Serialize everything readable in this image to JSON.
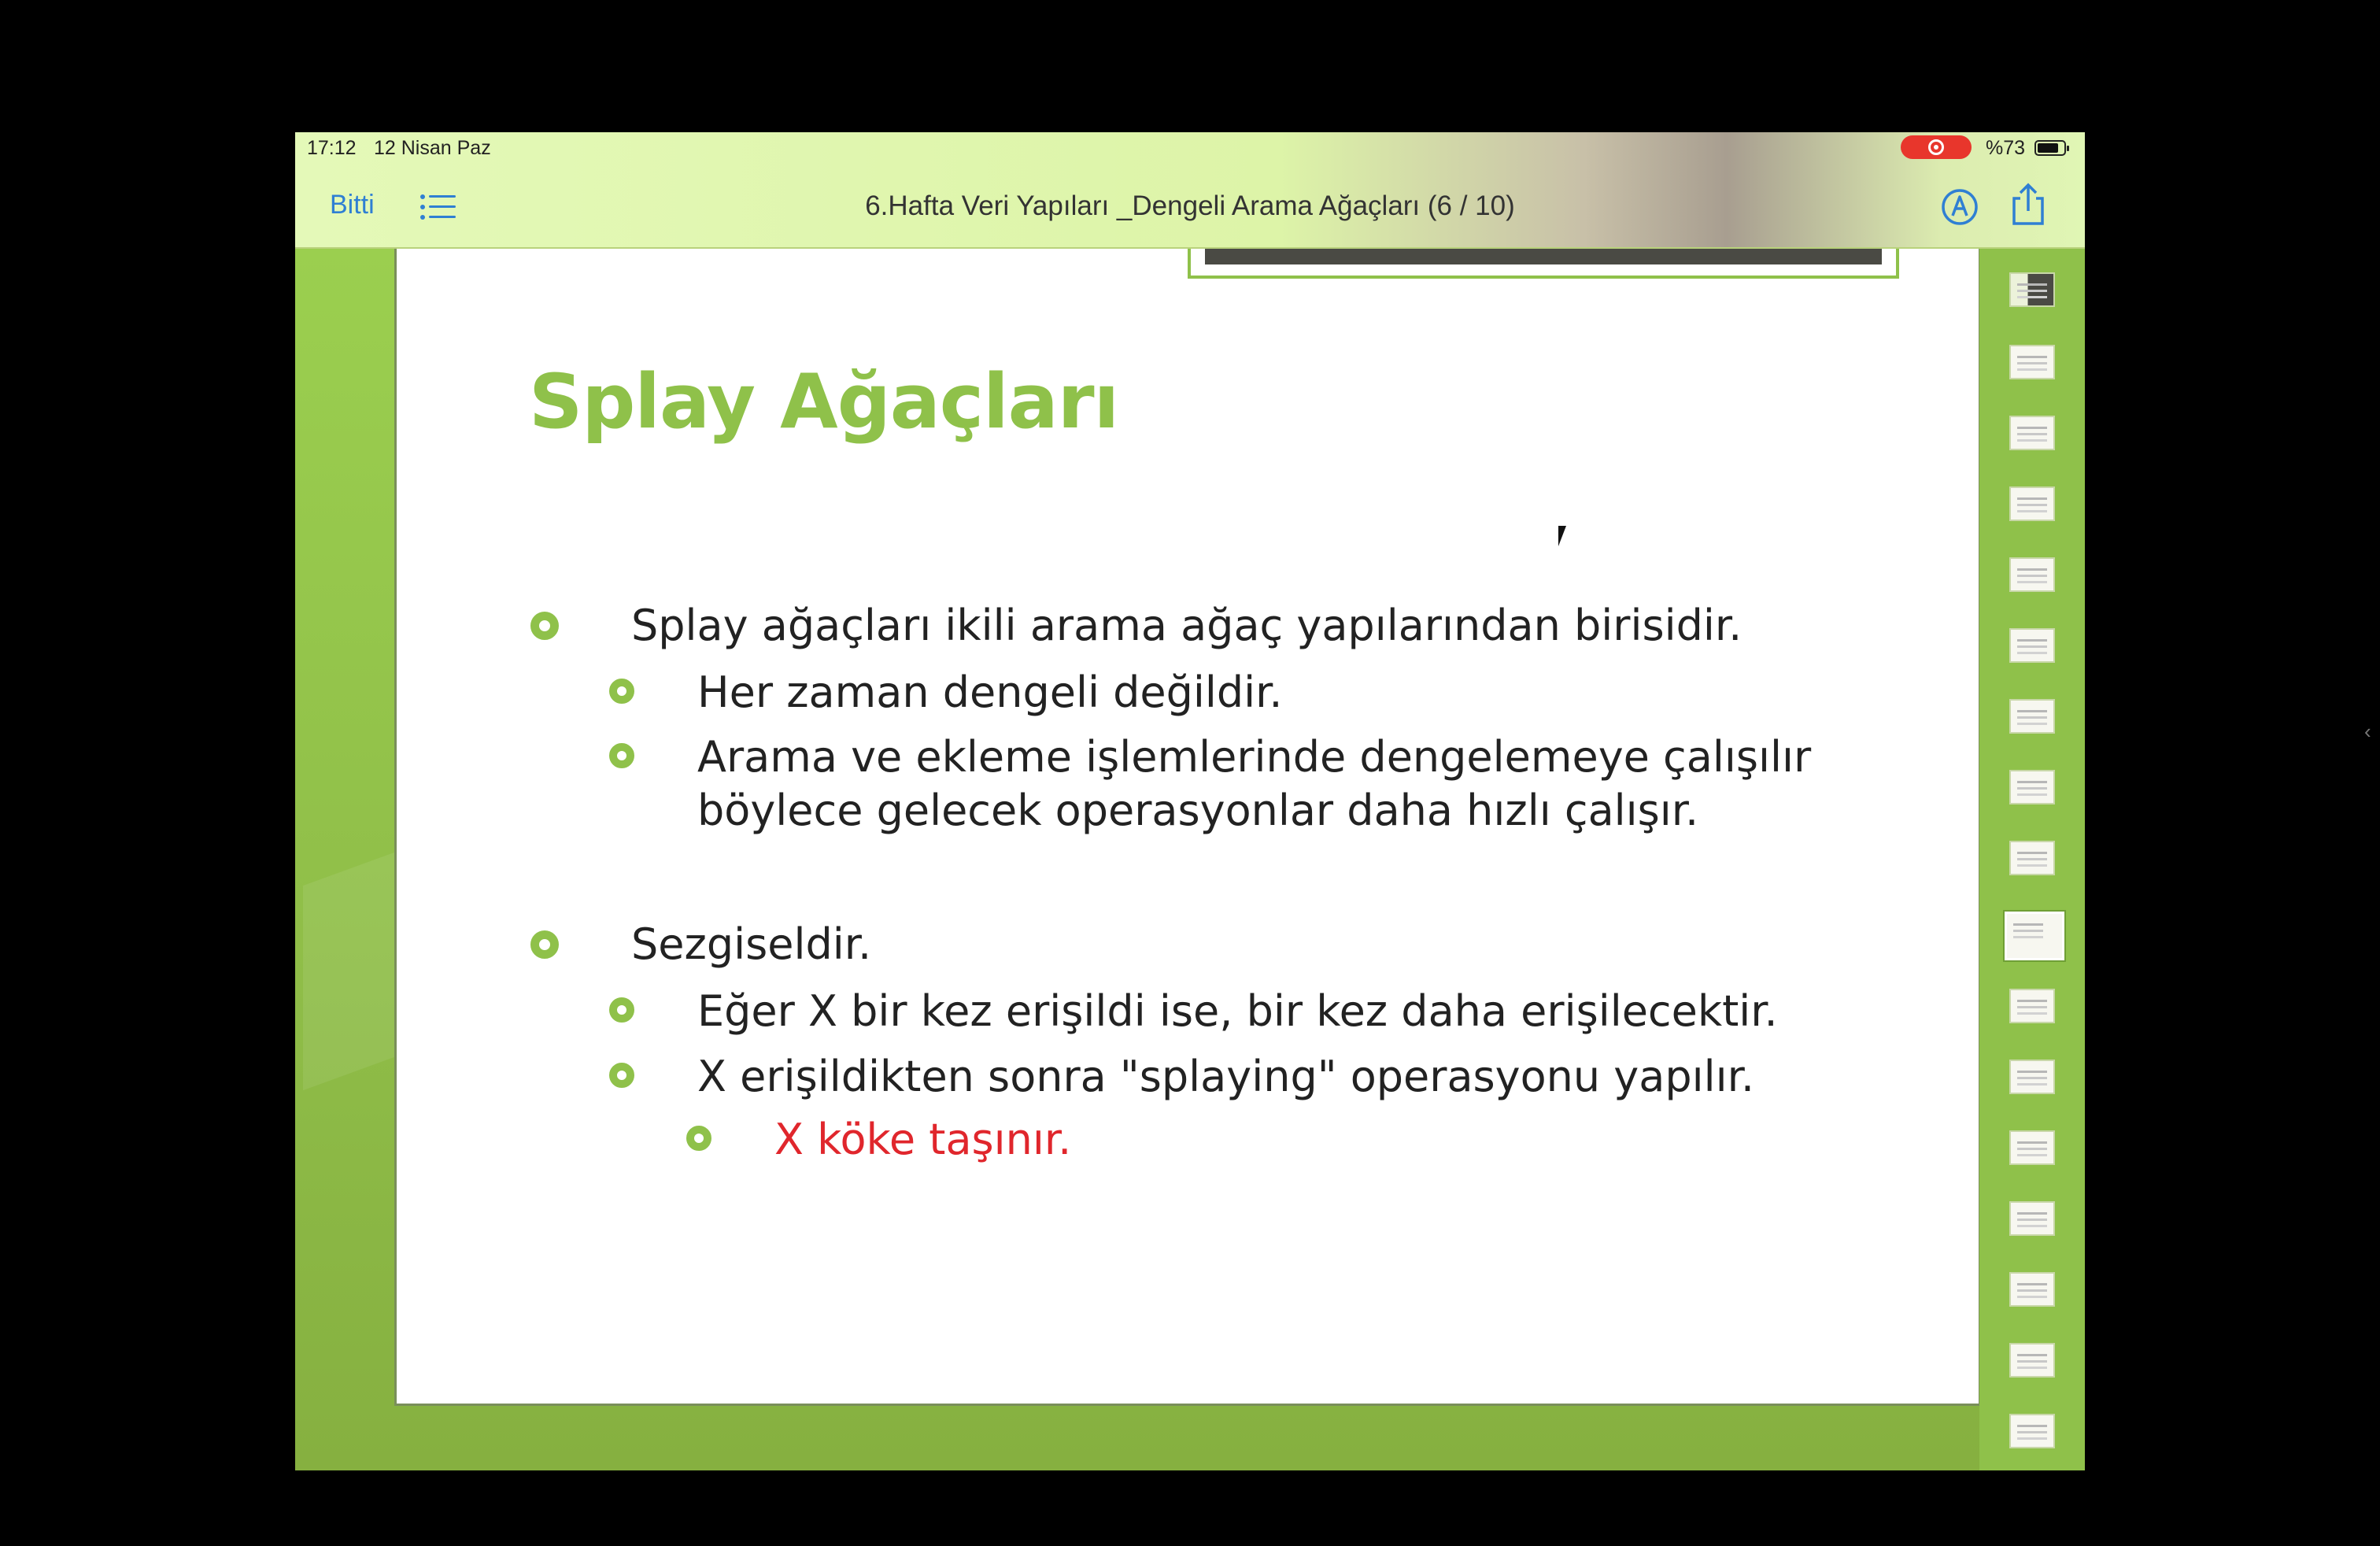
{
  "status": {
    "time": "17:12",
    "date": "12 Nisan Paz",
    "battery": "%73"
  },
  "toolbar": {
    "done_label": "Bitti",
    "title": "6.Hafta Veri Yapıları _Dengeli Arama Ağaçları (6 / 10)",
    "icons": [
      "list-icon",
      "markup-icon",
      "share-icon"
    ]
  },
  "slide": {
    "title": "Splay Ağaçları",
    "bullets": [
      {
        "level": 1,
        "text": "Splay ağaçları ikili arama ağaç yapılarından birisidir."
      },
      {
        "level": 2,
        "text": "Her zaman dengeli değildir."
      },
      {
        "level": 2,
        "text": "Arama ve ekleme işlemlerinde dengelemeye çalışılır"
      },
      {
        "level": 2,
        "text": "böylece gelecek operasyonlar daha hızlı çalışır.",
        "continuation": true
      },
      {
        "level": 1,
        "text": "Sezgiseldir."
      },
      {
        "level": 2,
        "text": "Eğer X bir kez erişildi ise, bir kez daha erişilecektir."
      },
      {
        "level": 2,
        "text": "X erişildikten sonra \"splaying\" operasyonu yapılır."
      },
      {
        "level": 3,
        "text": "X köke taşınır.",
        "color": "#e0262c"
      }
    ],
    "accent_color": "#8fc14a"
  },
  "thumbnails": {
    "count": 17,
    "active_index": 9
  }
}
